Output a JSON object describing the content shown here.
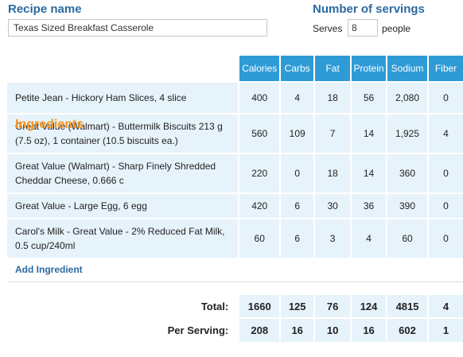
{
  "header": {
    "recipe_name_label": "Recipe name",
    "recipe_name_value": "Texas Sized Breakfast Casserole",
    "servings_label": "Number of servings",
    "serves_word": "Serves",
    "servings_value": "8",
    "people_word": "people"
  },
  "ingredients_title": "Ingredients",
  "columns": [
    "Calories",
    "Carbs",
    "Fat",
    "Protein",
    "Sodium",
    "Fiber"
  ],
  "ingredients": [
    {
      "name": "Petite Jean - Hickory Ham Slices, 4 slice",
      "values": [
        "400",
        "4",
        "18",
        "56",
        "2,080",
        "0"
      ]
    },
    {
      "name": "Great Value (Walmart) - Buttermilk Biscuits 213 g (7.5 oz), 1 container (10.5 biscuits ea.)",
      "values": [
        "560",
        "109",
        "7",
        "14",
        "1,925",
        "4"
      ]
    },
    {
      "name": "Great Value (Walmart) - Sharp Finely Shredded Cheddar Cheese, 0.666 c",
      "values": [
        "220",
        "0",
        "18",
        "14",
        "360",
        "0"
      ]
    },
    {
      "name": "Great Value - Large Egg, 6 egg",
      "values": [
        "420",
        "6",
        "30",
        "36",
        "390",
        "0"
      ]
    },
    {
      "name": "Carol's Milk - Great Value - 2% Reduced Fat Milk, 0.5 cup/240ml",
      "values": [
        "60",
        "6",
        "3",
        "4",
        "60",
        "0"
      ]
    }
  ],
  "add_ingredient_label": "Add Ingredient",
  "totals": {
    "label": "Total:",
    "values": [
      "1660",
      "125",
      "76",
      "124",
      "4815",
      "4"
    ]
  },
  "per_serving": {
    "label": "Per Serving:",
    "values": [
      "208",
      "16",
      "10",
      "16",
      "602",
      "1"
    ]
  }
}
